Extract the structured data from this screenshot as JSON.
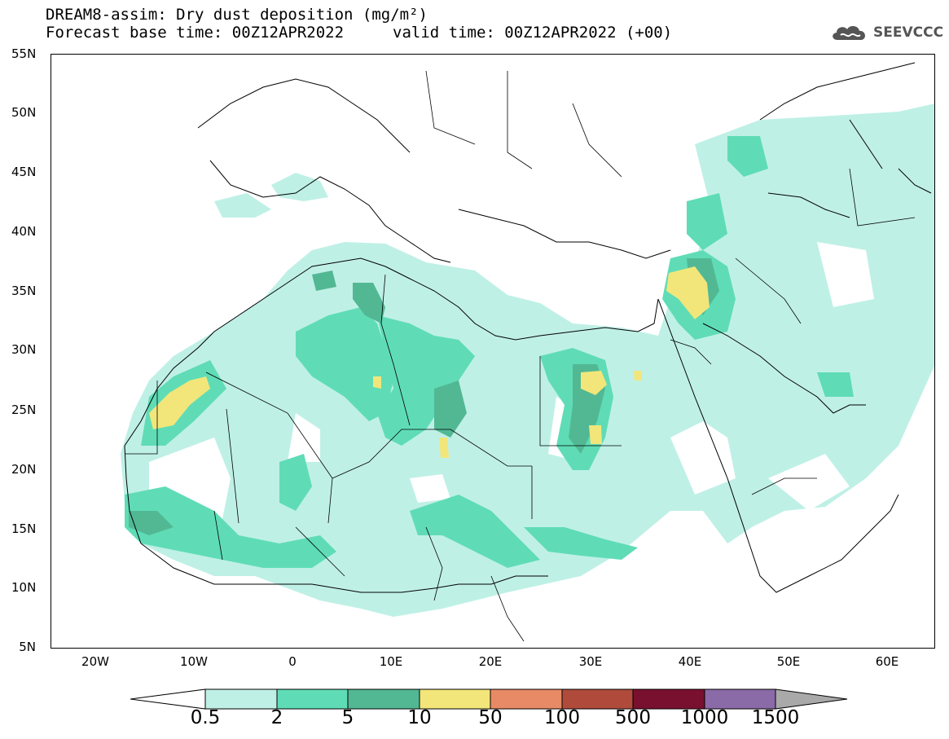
{
  "title": {
    "line1": "DREAM8-assim: Dry dust deposition (mg/m²)",
    "line2": "Forecast base time: 00Z12APR2022",
    "valid": "valid time: 00Z12APR2022 (+00)"
  },
  "logo": {
    "text": "SEEVCCC",
    "icon": "cloud-icon"
  },
  "axes": {
    "lat_labels": [
      "55N",
      "50N",
      "45N",
      "40N",
      "35N",
      "30N",
      "25N",
      "20N",
      "15N",
      "10N",
      "5N"
    ],
    "lat_values": [
      55,
      50,
      45,
      40,
      35,
      30,
      25,
      20,
      15,
      10,
      5
    ],
    "lon_labels": [
      "20W",
      "10W",
      "0",
      "10E",
      "20E",
      "30E",
      "40E",
      "50E",
      "60E"
    ],
    "lon_values": [
      -20,
      -10,
      0,
      10,
      20,
      30,
      40,
      50,
      60
    ],
    "lon_range": [
      -25,
      65
    ],
    "lat_range": [
      5,
      55
    ]
  },
  "colorbar": {
    "labels": [
      "0.5",
      "2",
      "5",
      "10",
      "50",
      "100",
      "500",
      "1000",
      "1500"
    ],
    "colors": [
      "#bff0e6",
      "#5fdcb6",
      "#52b894",
      "#f2e67a",
      "#e88a66",
      "#b04b3c",
      "#7a1030",
      "#8b6aa8",
      "#a9a9a9"
    ],
    "low_extend_color": "#ffffff"
  },
  "colors": {
    "level1": "#bff0e6",
    "level2": "#5fdcb6",
    "level3": "#52b894",
    "level4": "#f2e67a"
  }
}
